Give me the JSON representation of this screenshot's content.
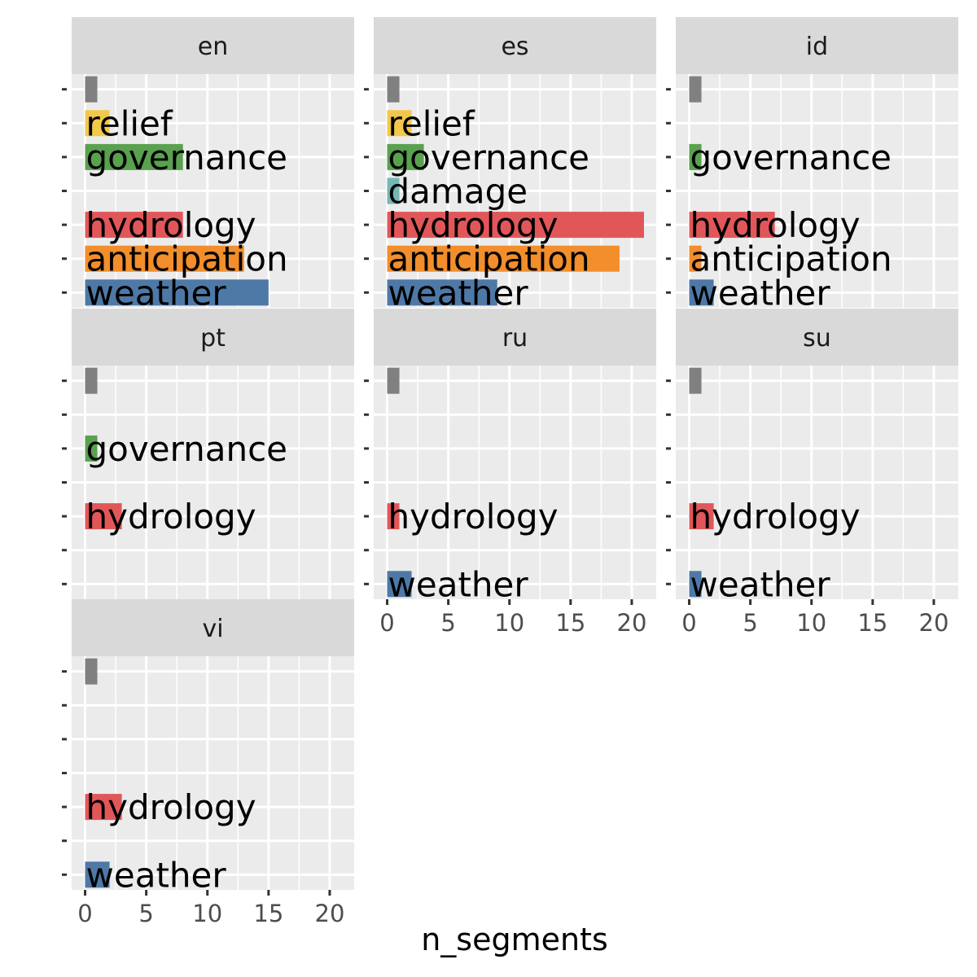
{
  "chart_data": {
    "type": "bar",
    "orientation": "horizontal",
    "xlabel": "n_segments",
    "ylabel": "",
    "xlim": [
      -1.1,
      22
    ],
    "x_ticks": [
      0,
      5,
      10,
      15,
      20
    ],
    "grid": true,
    "legend": "none",
    "category_rows": [
      "",
      "relief",
      "governance",
      "damage",
      "hydrology",
      "anticipation",
      "weather"
    ],
    "colors": {
      "": "#808080",
      "relief": "#F1C84B",
      "governance": "#59A14F",
      "damage": "#76B7B2",
      "hydrology": "#E15759",
      "anticipation": "#F28E2B",
      "weather": "#4E79A7"
    },
    "facets": [
      {
        "name": "en",
        "bars": [
          {
            "category": "",
            "value": 1
          },
          {
            "category": "relief",
            "value": 2
          },
          {
            "category": "governance",
            "value": 8
          },
          {
            "category": "hydrology",
            "value": 8
          },
          {
            "category": "anticipation",
            "value": 13
          },
          {
            "category": "weather",
            "value": 15
          }
        ]
      },
      {
        "name": "es",
        "bars": [
          {
            "category": "",
            "value": 1
          },
          {
            "category": "relief",
            "value": 2
          },
          {
            "category": "governance",
            "value": 3
          },
          {
            "category": "damage",
            "value": 1
          },
          {
            "category": "hydrology",
            "value": 21
          },
          {
            "category": "anticipation",
            "value": 19
          },
          {
            "category": "weather",
            "value": 9
          }
        ]
      },
      {
        "name": "id",
        "bars": [
          {
            "category": "",
            "value": 1
          },
          {
            "category": "governance",
            "value": 1
          },
          {
            "category": "hydrology",
            "value": 7
          },
          {
            "category": "anticipation",
            "value": 1
          },
          {
            "category": "weather",
            "value": 2
          }
        ]
      },
      {
        "name": "pt",
        "bars": [
          {
            "category": "",
            "value": 1
          },
          {
            "category": "governance",
            "value": 1
          },
          {
            "category": "hydrology",
            "value": 3
          }
        ]
      },
      {
        "name": "ru",
        "bars": [
          {
            "category": "",
            "value": 1
          },
          {
            "category": "hydrology",
            "value": 1
          },
          {
            "category": "weather",
            "value": 2
          }
        ]
      },
      {
        "name": "su",
        "bars": [
          {
            "category": "",
            "value": 1
          },
          {
            "category": "hydrology",
            "value": 2
          },
          {
            "category": "weather",
            "value": 1
          }
        ]
      },
      {
        "name": "vi",
        "bars": [
          {
            "category": "",
            "value": 1
          },
          {
            "category": "hydrology",
            "value": 3
          },
          {
            "category": "weather",
            "value": 2
          }
        ]
      }
    ]
  }
}
